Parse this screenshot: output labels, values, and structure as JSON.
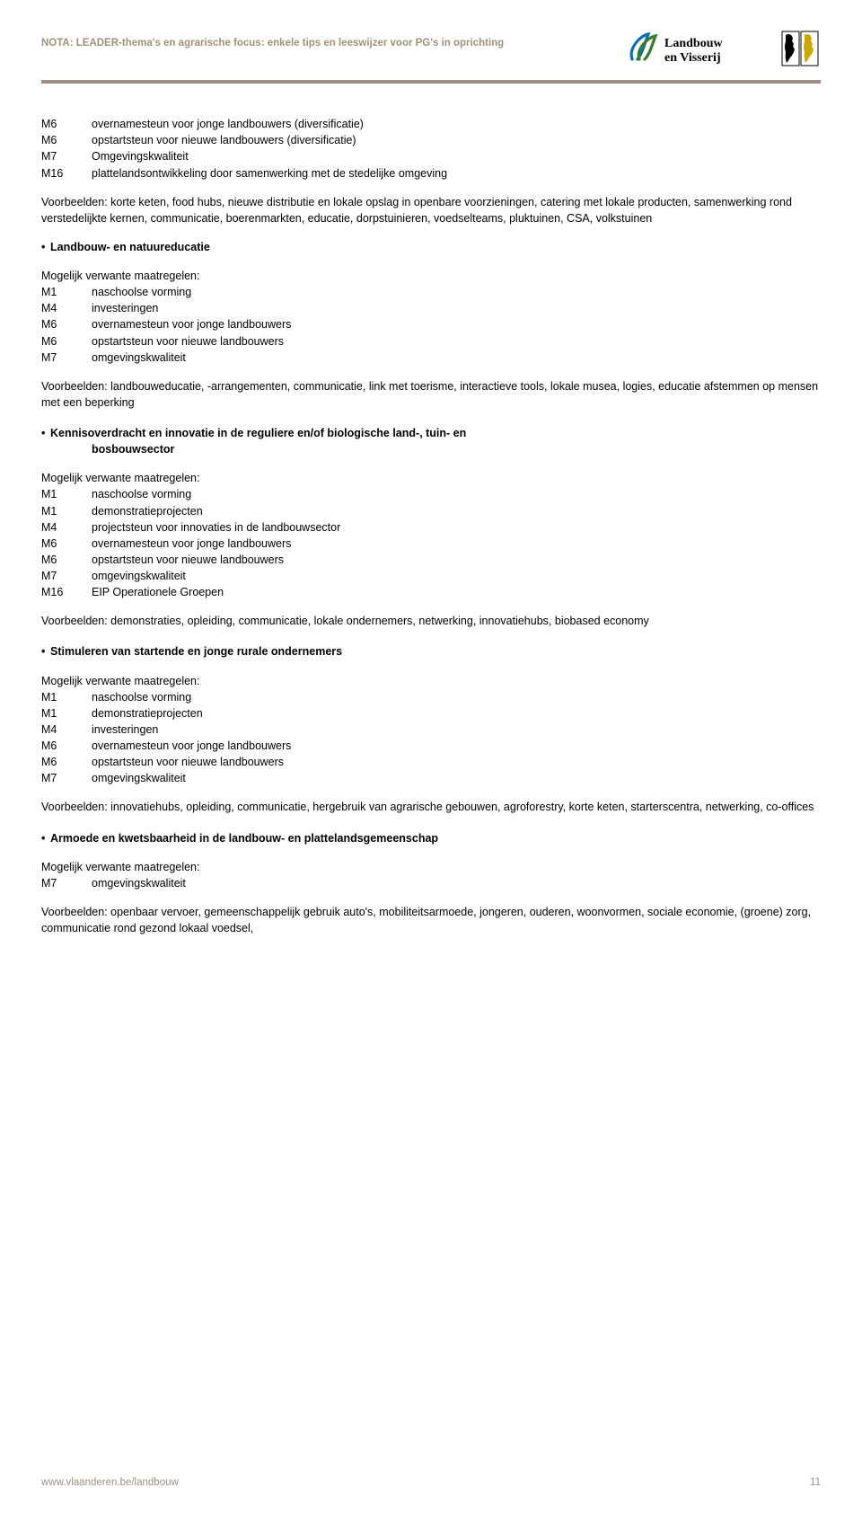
{
  "header": {
    "nota_title": "NOTA: LEADER-thema's en agrarische focus: enkele tips en leeswijzer voor PG's in oprichting",
    "logo_text": "Landbouw en Visserij"
  },
  "colors": {
    "tan": "#9d9280",
    "blue": "#0a6fb8",
    "green": "#3a7c2a",
    "gold": "#c9a800",
    "black": "#000000"
  },
  "top_measures": [
    {
      "code": "M6",
      "desc": "overnamesteun voor jonge landbouwers (diversificatie)"
    },
    {
      "code": "M6",
      "desc": "opstartsteun voor nieuwe landbouwers (diversificatie)"
    },
    {
      "code": "M7",
      "desc": "Omgevingskwaliteit"
    },
    {
      "code": "M16",
      "desc": "plattelandsontwikkeling door samenwerking met de stedelijke omgeving"
    }
  ],
  "top_voorbeelden": "Voorbeelden: korte keten, food hubs, nieuwe distributie en lokale opslag in openbare voorzieningen, catering met lokale producten, samenwerking rond verstedelijkte kernen, communicatie, boerenmarkten, educatie, dorpstuinieren, voedselteams, pluktuinen, CSA, volkstuinen",
  "sections": [
    {
      "heading": "Landbouw- en natuureducatie",
      "heading_indent": null,
      "mog": "Mogelijk verwante maatregelen:",
      "measures": [
        {
          "code": "M1",
          "desc": "naschoolse vorming"
        },
        {
          "code": "M4",
          "desc": "investeringen"
        },
        {
          "code": "M6",
          "desc": "overnamesteun voor jonge landbouwers"
        },
        {
          "code": "M6",
          "desc": "opstartsteun voor nieuwe landbouwers"
        },
        {
          "code": "M7",
          "desc": "omgevingskwaliteit"
        }
      ],
      "voorbeelden": "Voorbeelden: landbouweducatie, -arrangementen, communicatie, link met toerisme, interactieve tools, lokale musea, logies, educatie afstemmen op mensen met een beperking"
    },
    {
      "heading": "Kennisoverdracht en innovatie in de reguliere en/of biologische land-, tuin- en",
      "heading_indent": "bosbouwsector",
      "mog": "Mogelijk verwante maatregelen:",
      "measures": [
        {
          "code": "M1",
          "desc": "naschoolse vorming"
        },
        {
          "code": "M1",
          "desc": "demonstratieprojecten"
        },
        {
          "code": "M4",
          "desc": "projectsteun voor innovaties in de landbouwsector"
        },
        {
          "code": "M6",
          "desc": "overnamesteun voor jonge landbouwers"
        },
        {
          "code": "M6",
          "desc": "opstartsteun voor nieuwe landbouwers"
        },
        {
          "code": "M7",
          "desc": "omgevingskwaliteit"
        },
        {
          "code": "M16",
          "desc": "EIP Operationele Groepen"
        }
      ],
      "voorbeelden": "Voorbeelden: demonstraties, opleiding, communicatie, lokale ondernemers, netwerking, innovatiehubs, biobased economy"
    },
    {
      "heading": "Stimuleren van startende en jonge rurale ondernemers",
      "heading_indent": null,
      "mog": "Mogelijk verwante maatregelen:",
      "measures": [
        {
          "code": "M1",
          "desc": "naschoolse vorming"
        },
        {
          "code": "M1",
          "desc": "demonstratieprojecten"
        },
        {
          "code": "M4",
          "desc": "investeringen"
        },
        {
          "code": "M6",
          "desc": "overnamesteun voor jonge landbouwers"
        },
        {
          "code": "M6",
          "desc": "opstartsteun voor nieuwe landbouwers"
        },
        {
          "code": "M7",
          "desc": "omgevingskwaliteit"
        }
      ],
      "voorbeelden": "Voorbeelden: innovatiehubs, opleiding, communicatie, hergebruik van agrarische gebouwen, agroforestry, korte keten, starterscentra, netwerking, co-offices"
    },
    {
      "heading": "Armoede en kwetsbaarheid in de landbouw- en plattelandsgemeenschap",
      "heading_indent": null,
      "mog": "Mogelijk verwante maatregelen:",
      "measures": [
        {
          "code": "M7",
          "desc": "omgevingskwaliteit"
        }
      ],
      "voorbeelden": "Voorbeelden: openbaar vervoer, gemeenschappelijk gebruik auto's, mobiliteitsarmoede, jongeren, ouderen, woonvormen, sociale economie, (groene) zorg, communicatie rond gezond lokaal voedsel,"
    }
  ],
  "footer": {
    "url": "www.vlaanderen.be/landbouw",
    "page": "11"
  }
}
